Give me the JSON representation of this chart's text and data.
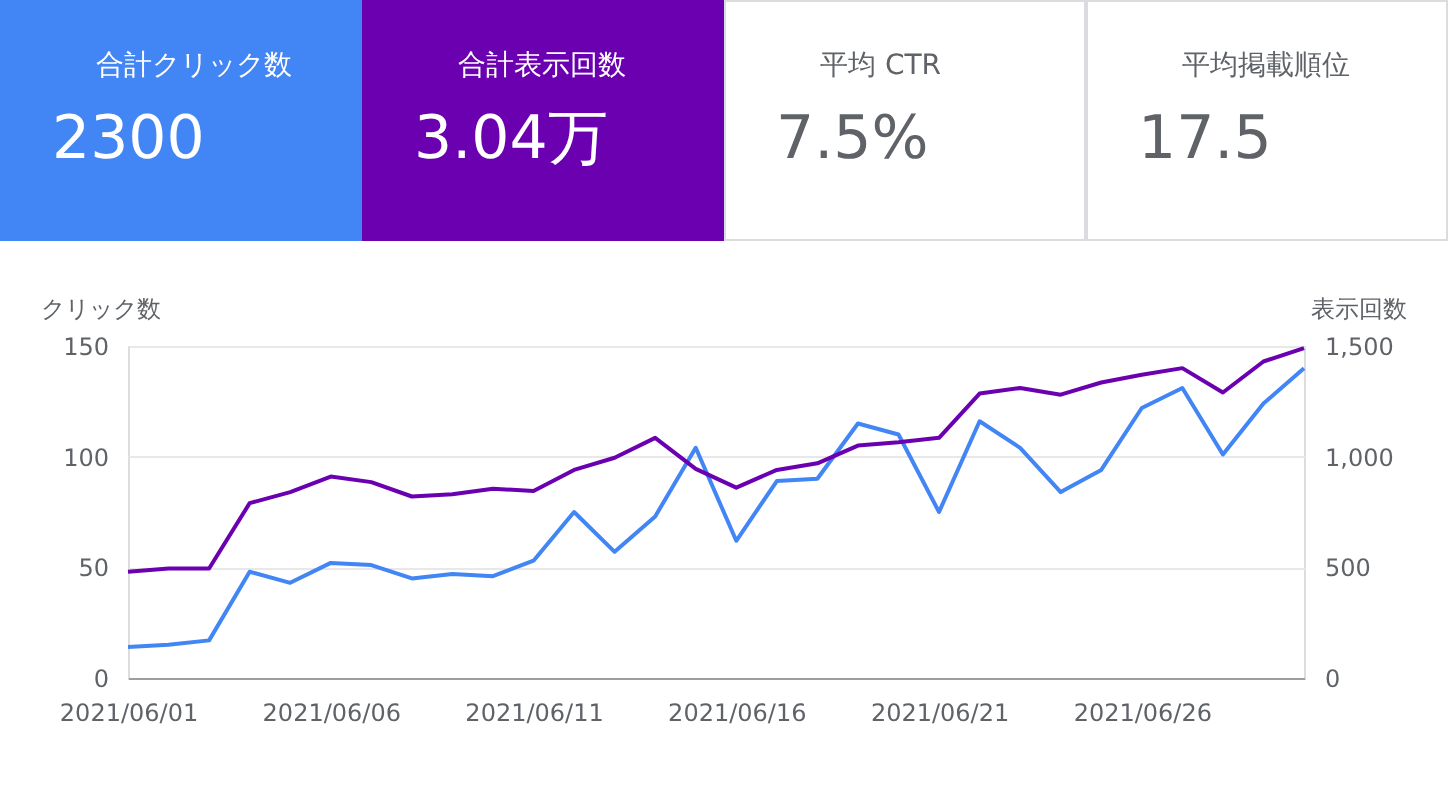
{
  "chart_data": {
    "type": "line",
    "ylabel": "クリック数",
    "y2label": "表示回数",
    "annotations": [
      "合計クリック数",
      "2300",
      "合計表示回数",
      "3.04万",
      "平均 CTR",
      "7.5%",
      "平均掲載順位",
      "17.5"
    ],
    "x": [
      "2021-06-01",
      "2021-06-02",
      "2021-06-03",
      "2021-06-04",
      "2021-06-05",
      "2021-06-06",
      "2021-06-07",
      "2021-06-08",
      "2021-06-09",
      "2021-06-10",
      "2021-06-11",
      "2021-06-12",
      "2021-06-13",
      "2021-06-14",
      "2021-06-15",
      "2021-06-16",
      "2021-06-17",
      "2021-06-18",
      "2021-06-19",
      "2021-06-20",
      "2021-06-21",
      "2021-06-22",
      "2021-06-23",
      "2021-06-24",
      "2021-06-25",
      "2021-06-26",
      "2021-06-27",
      "2021-06-28",
      "2021-06-29",
      "2021-06-30"
    ],
    "series": [
      {
        "color": "#4285f4",
        "values": [
          14,
          15,
          17,
          48,
          43,
          52,
          51,
          45,
          47,
          46,
          53,
          75,
          57,
          73,
          104,
          62,
          89,
          90,
          115,
          110,
          75,
          116,
          104,
          84,
          94,
          122,
          131,
          101,
          124,
          140
        ]
      },
      {
        "color": "#6a00b0",
        "axis": "y2",
        "values": [
          480,
          495,
          495,
          790,
          840,
          910,
          885,
          820,
          830,
          855,
          845,
          940,
          995,
          1085,
          945,
          860,
          940,
          970,
          1050,
          1065,
          1085,
          1285,
          1310,
          1280,
          1335,
          1370,
          1400,
          1290,
          1430,
          1490
        ]
      }
    ],
    "xlim": [
      "2021-06-01",
      "2021-06-30"
    ],
    "xticks": [
      {
        "value": "2021-06-01",
        "label": "2021/06/01"
      },
      {
        "value": "2021-06-06",
        "label": "2021/06/06"
      },
      {
        "value": "2021-06-11",
        "label": "2021/06/11"
      },
      {
        "value": "2021-06-16",
        "label": "2021/06/16"
      },
      {
        "value": "2021-06-21",
        "label": "2021/06/21"
      },
      {
        "value": "2021-06-26",
        "label": "2021/06/26"
      }
    ],
    "ylim": [
      0,
      150
    ],
    "yticks": [
      0,
      50,
      100,
      150
    ],
    "y2lim": [
      0,
      1500
    ],
    "y2ticks": [
      0,
      500,
      {
        "value": 1000,
        "label": "1,000"
      },
      {
        "value": 1500,
        "label": "1,500"
      }
    ],
    "grid": "y",
    "marker": "none",
    "line_style": "solid"
  }
}
